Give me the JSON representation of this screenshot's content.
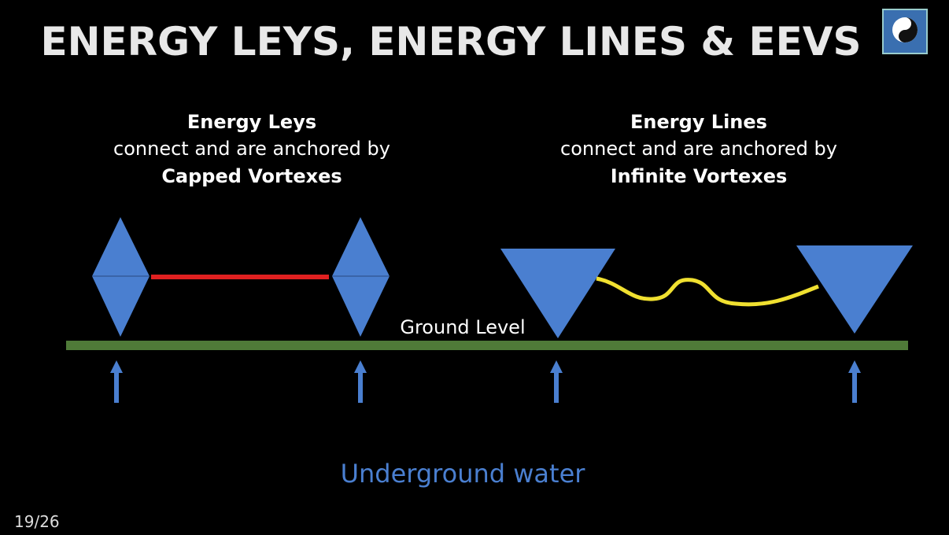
{
  "header": {
    "title": "ENERGY LEYS, ENERGY LINES & EEVS"
  },
  "left": {
    "heading": "Energy Leys",
    "description": "connect and are anchored by",
    "emphasis": "Capped Vortexes"
  },
  "right": {
    "heading": "Energy Lines",
    "description": "connect and are anchored by",
    "emphasis": "Infinite Vortexes"
  },
  "ground_label": "Ground Level",
  "water_label": "Underground water",
  "page_number": "19/26"
}
